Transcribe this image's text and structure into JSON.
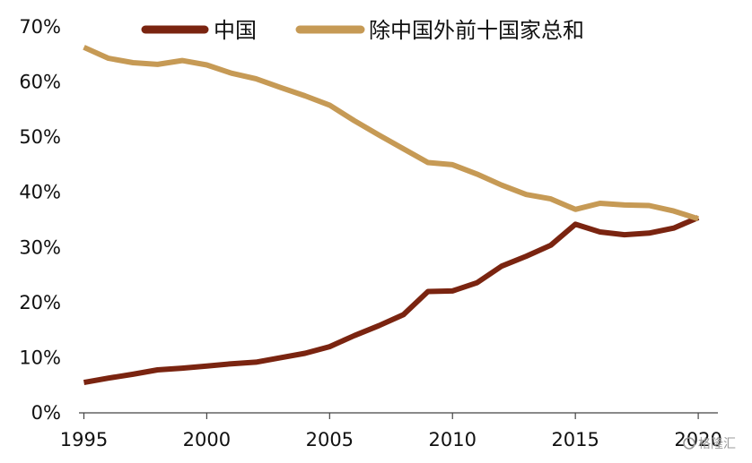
{
  "chart_data": {
    "type": "line",
    "title": "",
    "xlabel": "",
    "ylabel": "",
    "x": [
      1995,
      1996,
      1997,
      1998,
      1999,
      2000,
      2001,
      2002,
      2003,
      2004,
      2005,
      2006,
      2007,
      2008,
      2009,
      2010,
      2011,
      2012,
      2013,
      2014,
      2015,
      2016,
      2017,
      2018,
      2019,
      2020
    ],
    "xlim": [
      1994.8,
      2020.8
    ],
    "xticks": [
      1995,
      2000,
      2005,
      2010,
      2015,
      2020
    ],
    "xtick_labels": [
      "1995",
      "2000",
      "2005",
      "2010",
      "2015",
      "2020"
    ],
    "ylim": [
      0,
      70
    ],
    "yticks": [
      0,
      10,
      20,
      30,
      40,
      50,
      60,
      70
    ],
    "ytick_labels": [
      "0%",
      "10%",
      "20%",
      "30%",
      "40%",
      "50%",
      "60%",
      "70%"
    ],
    "grid": false,
    "legend_position": "top-center",
    "series": [
      {
        "name": "中国",
        "color": "#7a2410",
        "values": [
          5.5,
          6.3,
          7.0,
          7.8,
          8.1,
          8.5,
          8.9,
          9.2,
          10.0,
          10.8,
          12.0,
          14.0,
          15.8,
          17.8,
          22.0,
          22.1,
          23.6,
          26.6,
          28.4,
          30.4,
          34.2,
          32.8,
          32.3,
          32.6,
          33.5,
          35.4
        ]
      },
      {
        "name": "除中国外前十国家总和",
        "color": "#c69a55",
        "values": [
          66.3,
          64.3,
          63.5,
          63.2,
          63.9,
          63.1,
          61.6,
          60.6,
          59.0,
          57.5,
          55.8,
          53.0,
          50.4,
          47.9,
          45.4,
          45.0,
          43.3,
          41.3,
          39.6,
          38.8,
          36.9,
          38.0,
          37.7,
          37.6,
          36.6,
          35.2
        ]
      }
    ]
  },
  "watermark": {
    "text": "格隆汇"
  }
}
